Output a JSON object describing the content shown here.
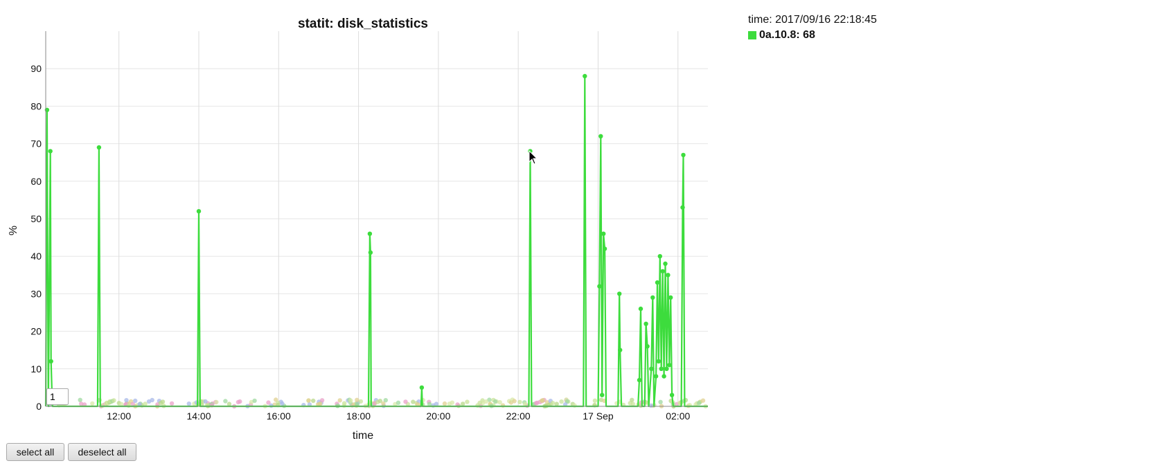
{
  "legend": {
    "time_label": "time: 2017/09/16 22:18:45",
    "series_label": "0a.10.8: 68",
    "series_color": "#3ddc3d"
  },
  "controls": {
    "range_value": "1",
    "select_all": "select all",
    "deselect_all": "deselect all"
  },
  "cursor_icon": "arrow-cursor-icon",
  "chart_data": {
    "type": "line",
    "title": "statit: disk_statistics",
    "xlabel": "time",
    "ylabel": "%",
    "ylim": [
      0,
      100
    ],
    "yticks": [
      0,
      10,
      20,
      30,
      40,
      50,
      60,
      70,
      80,
      90
    ],
    "xlim": [
      "2017/09/16 10:10",
      "2017/09/17 02:45"
    ],
    "xticks": [
      {
        "t": "2017/09/16 12:00",
        "label": "12:00"
      },
      {
        "t": "2017/09/16 14:00",
        "label": "14:00"
      },
      {
        "t": "2017/09/16 16:00",
        "label": "16:00"
      },
      {
        "t": "2017/09/16 18:00",
        "label": "18:00"
      },
      {
        "t": "2017/09/16 20:00",
        "label": "20:00"
      },
      {
        "t": "2017/09/16 22:00",
        "label": "22:00"
      },
      {
        "t": "2017/09/17 00:00",
        "label": "17 Sep"
      },
      {
        "t": "2017/09/17 02:00",
        "label": "02:00"
      }
    ],
    "grid": true,
    "legend_position": "top-right",
    "highlight_series": "0a.10.8",
    "series": [
      {
        "name": "0a.10.8",
        "color": "#3ddc3d",
        "points": [
          [
            "2017/09/16 10:10",
            0
          ],
          [
            "2017/09/16 10:12",
            79
          ],
          [
            "2017/09/16 10:14",
            0
          ],
          [
            "2017/09/16 10:17",
            68
          ],
          [
            "2017/09/16 10:18",
            12
          ],
          [
            "2017/09/16 10:20",
            0
          ],
          [
            "2017/09/16 11:28",
            0
          ],
          [
            "2017/09/16 11:30",
            69
          ],
          [
            "2017/09/16 11:32",
            0
          ],
          [
            "2017/09/16 13:58",
            0
          ],
          [
            "2017/09/16 14:00",
            52
          ],
          [
            "2017/09/16 14:02",
            0
          ],
          [
            "2017/09/16 18:15",
            0
          ],
          [
            "2017/09/16 18:17",
            46
          ],
          [
            "2017/09/16 18:18",
            41
          ],
          [
            "2017/09/16 18:19",
            0
          ],
          [
            "2017/09/16 19:34",
            0
          ],
          [
            "2017/09/16 19:35",
            5
          ],
          [
            "2017/09/16 19:36",
            0
          ],
          [
            "2017/09/16 22:16",
            0
          ],
          [
            "2017/09/16 22:18",
            68
          ],
          [
            "2017/09/16 22:20",
            0
          ],
          [
            "2017/09/16 23:38",
            0
          ],
          [
            "2017/09/16 23:40",
            88
          ],
          [
            "2017/09/16 23:42",
            0
          ],
          [
            "2017/09/17 00:00",
            0
          ],
          [
            "2017/09/17 00:02",
            32
          ],
          [
            "2017/09/17 00:04",
            72
          ],
          [
            "2017/09/17 00:06",
            3
          ],
          [
            "2017/09/17 00:08",
            46
          ],
          [
            "2017/09/17 00:10",
            42
          ],
          [
            "2017/09/17 00:12",
            0
          ],
          [
            "2017/09/17 00:30",
            0
          ],
          [
            "2017/09/17 00:32",
            30
          ],
          [
            "2017/09/17 00:33",
            15
          ],
          [
            "2017/09/17 00:35",
            0
          ],
          [
            "2017/09/17 01:00",
            0
          ],
          [
            "2017/09/17 01:02",
            7
          ],
          [
            "2017/09/17 01:04",
            26
          ],
          [
            "2017/09/17 01:06",
            0
          ],
          [
            "2017/09/17 01:10",
            0
          ],
          [
            "2017/09/17 01:12",
            22
          ],
          [
            "2017/09/17 01:14",
            16
          ],
          [
            "2017/09/17 01:16",
            0
          ],
          [
            "2017/09/17 01:20",
            10
          ],
          [
            "2017/09/17 01:22",
            29
          ],
          [
            "2017/09/17 01:24",
            0
          ],
          [
            "2017/09/17 01:27",
            8
          ],
          [
            "2017/09/17 01:29",
            33
          ],
          [
            "2017/09/17 01:31",
            12
          ],
          [
            "2017/09/17 01:33",
            40
          ],
          [
            "2017/09/17 01:35",
            10
          ],
          [
            "2017/09/17 01:37",
            36
          ],
          [
            "2017/09/17 01:39",
            8
          ],
          [
            "2017/09/17 01:41",
            38
          ],
          [
            "2017/09/17 01:43",
            10
          ],
          [
            "2017/09/17 01:45",
            35
          ],
          [
            "2017/09/17 01:47",
            11
          ],
          [
            "2017/09/17 01:49",
            29
          ],
          [
            "2017/09/17 01:51",
            3
          ],
          [
            "2017/09/17 01:53",
            0
          ],
          [
            "2017/09/17 02:05",
            0
          ],
          [
            "2017/09/17 02:07",
            53
          ],
          [
            "2017/09/17 02:08",
            67
          ],
          [
            "2017/09/17 02:10",
            0
          ],
          [
            "2017/09/17 02:45",
            0
          ]
        ]
      }
    ]
  }
}
